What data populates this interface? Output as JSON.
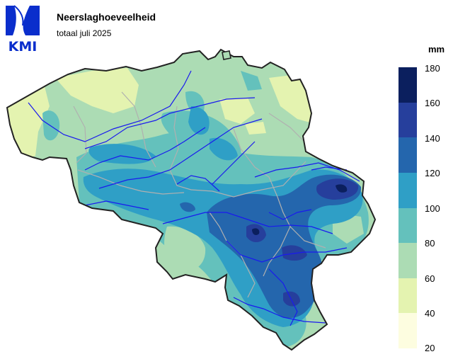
{
  "logo": {
    "text": "KMI",
    "color": "#0a2ecc"
  },
  "title": "Neerslaghoeveelheid",
  "subtitle": "totaal juli 2025",
  "legend": {
    "unit": "mm",
    "ticks": [
      "180",
      "160",
      "140",
      "120",
      "100",
      "80",
      "60",
      "40",
      "20"
    ],
    "classes": [
      {
        "range": "160-180",
        "color": "#0b1f5e"
      },
      {
        "range": "140-160",
        "color": "#263f9c"
      },
      {
        "range": "120-140",
        "color": "#2466ad"
      },
      {
        "range": "100-120",
        "color": "#2f9fc6"
      },
      {
        "range": "80-100",
        "color": "#64c1bc"
      },
      {
        "range": "60-80",
        "color": "#acdcb4"
      },
      {
        "range": "40-60",
        "color": "#e4f3b0"
      },
      {
        "range": "20-40",
        "color": "#fdfde0"
      }
    ]
  },
  "map": {
    "region": "Belgium",
    "border_color": "#222222",
    "river_color": "#1a1aee",
    "province_border_color": "#b0b0b0"
  }
}
